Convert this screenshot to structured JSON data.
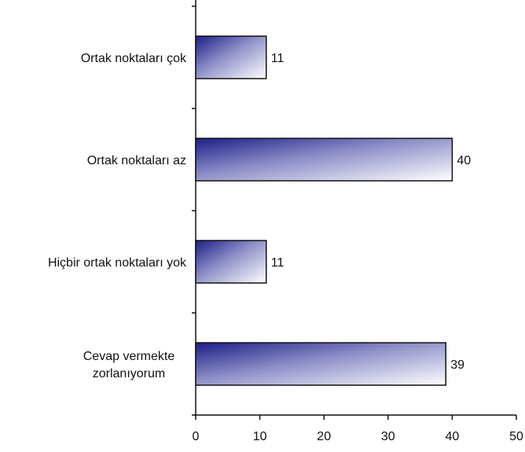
{
  "chart_data": {
    "type": "bar",
    "orientation": "horizontal",
    "title": "",
    "xlabel": "",
    "ylabel": "",
    "categories": [
      [
        "Ortak noktaları çok"
      ],
      [
        "Ortak noktaları az"
      ],
      [
        "Hiçbir ortak noktaları yok"
      ],
      [
        "Cevap vermekte",
        "zorlanıyorum"
      ]
    ],
    "values": [
      11,
      40,
      11,
      39
    ],
    "data_labels": [
      "11",
      "40",
      "11",
      "39"
    ],
    "xlim": [
      0,
      50
    ],
    "xticks": [
      0,
      10,
      20,
      30,
      40,
      50
    ],
    "grid": false,
    "legend": "none",
    "colors": {
      "bar_gradient_start": "#1c1f86",
      "bar_gradient_mid": "#8e90c8",
      "bar_gradient_end": "#ffffff",
      "bar_stroke": "#111111",
      "axis": "#111111",
      "text": "#111111"
    }
  }
}
